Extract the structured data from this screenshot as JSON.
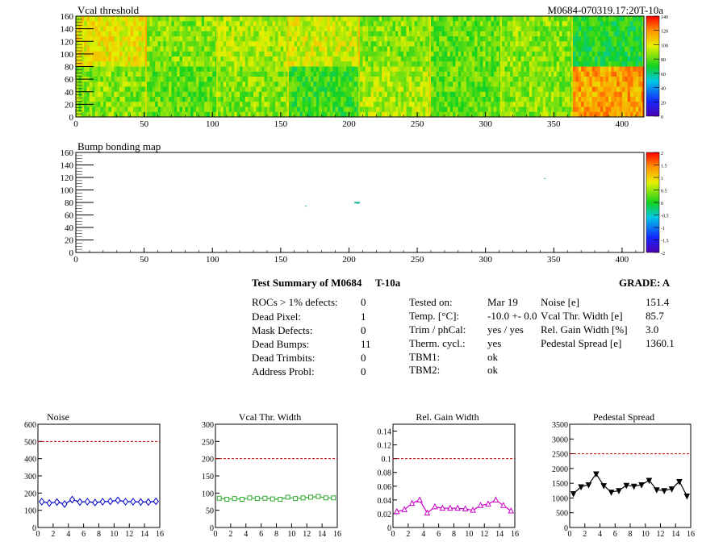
{
  "header": {
    "vcal_title": "Vcal threshold",
    "run_id": "M0684-070319.17:20T-10a",
    "bump_title": "Bump bonding map"
  },
  "heatmaps": {
    "x_ticks": [
      "0",
      "50",
      "100",
      "150",
      "200",
      "250",
      "300",
      "350",
      "400"
    ],
    "y_ticks": [
      "0",
      "20",
      "40",
      "60",
      "80",
      "100",
      "120",
      "140",
      "160"
    ],
    "vcal_palette_ticks": [
      "0",
      "20",
      "40",
      "60",
      "80",
      "100",
      "120",
      "140"
    ],
    "bump_palette_ticks": [
      "-2",
      "-1.5",
      "-1",
      "-0.5",
      "0",
      "0.5",
      "1",
      "1.5",
      "2"
    ]
  },
  "summary": {
    "title": "Test Summary of M0684",
    "condition": "T-10a",
    "grade": "GRADE:  A",
    "left_rows": [
      {
        "label": "ROCs > 1% defects:",
        "value": "0"
      },
      {
        "label": "Dead Pixel:",
        "value": "1"
      },
      {
        "label": "Mask Defects:",
        "value": "0"
      },
      {
        "label": "Dead Bumps:",
        "value": "11"
      },
      {
        "label": "Dead Trimbits:",
        "value": "0"
      },
      {
        "label": "Address Probl:",
        "value": "0"
      }
    ],
    "middle_rows": [
      {
        "label": "Tested on:",
        "value": "Mar 19"
      },
      {
        "label": "Temp. [°C]:",
        "value": "-10.0 +- 0.0"
      },
      {
        "label": "Trim / phCal:",
        "value": "yes / yes"
      },
      {
        "label": "Therm. cycl.:",
        "value": "yes"
      },
      {
        "label": "TBM1:",
        "value": "ok"
      },
      {
        "label": "TBM2:",
        "value": "ok"
      }
    ],
    "right_rows": [
      {
        "label": "Noise [e]",
        "value": "151.4"
      },
      {
        "label": "Vcal Thr. Width [e]",
        "value": "85.7"
      },
      {
        "label": "Rel. Gain Width [%]",
        "value": "3.0"
      },
      {
        "label": "Pedestal Spread [e]",
        "value": "1360.1"
      }
    ]
  },
  "chart_data": [
    {
      "type": "heatmap",
      "title": "Vcal threshold",
      "xlim": [
        0,
        416
      ],
      "ylim": [
        0,
        160
      ],
      "zlim": [
        0,
        140
      ],
      "roc_grid": {
        "columns": 8,
        "rows": 2
      },
      "roc_mean_threshold": [
        [
          100,
          85,
          90,
          95,
          85,
          80,
          85,
          70
        ],
        [
          85,
          80,
          85,
          75,
          90,
          80,
          85,
          115
        ]
      ]
    },
    {
      "type": "heatmap",
      "title": "Bump bonding map",
      "xlim": [
        0,
        416
      ],
      "ylim": [
        0,
        160
      ],
      "zlim": [
        -2,
        2
      ],
      "dead_bumps": [
        {
          "x": 168,
          "y": 74
        },
        {
          "x": 204,
          "y": 80
        },
        {
          "x": 205,
          "y": 80
        },
        {
          "x": 206,
          "y": 80
        },
        {
          "x": 207,
          "y": 80
        },
        {
          "x": 204,
          "y": 79
        },
        {
          "x": 205,
          "y": 79
        },
        {
          "x": 206,
          "y": 79
        },
        {
          "x": 207,
          "y": 79
        },
        {
          "x": 206,
          "y": 78
        },
        {
          "x": 343,
          "y": 118
        }
      ]
    },
    {
      "type": "line",
      "title": "Noise",
      "xlim": [
        0,
        16
      ],
      "ylim": [
        0,
        600
      ],
      "x_ticks": [
        "0",
        "2",
        "4",
        "6",
        "8",
        "10",
        "12",
        "14",
        "16"
      ],
      "y_ticks": [
        "0",
        "100",
        "200",
        "300",
        "400",
        "500",
        "600"
      ],
      "limit": 500,
      "color": "#0000cc",
      "marker": "diamond",
      "values": [
        150,
        142,
        148,
        136,
        162,
        148,
        150,
        145,
        150,
        152,
        158,
        150,
        150,
        148,
        148,
        152
      ]
    },
    {
      "type": "line",
      "title": "Vcal Thr. Width",
      "xlim": [
        0,
        16
      ],
      "ylim": [
        0,
        300
      ],
      "x_ticks": [
        "0",
        "2",
        "4",
        "6",
        "8",
        "10",
        "12",
        "14",
        "16"
      ],
      "y_ticks": [
        "0",
        "50",
        "100",
        "150",
        "200",
        "250",
        "300"
      ],
      "limit": 200,
      "color": "#33aa33",
      "marker": "square",
      "values": [
        85,
        82,
        84,
        82,
        86,
        84,
        85,
        83,
        82,
        88,
        84,
        86,
        88,
        90,
        86,
        86
      ]
    },
    {
      "type": "line",
      "title": "Rel. Gain Width",
      "xlim": [
        0,
        16
      ],
      "ylim": [
        0,
        0.15
      ],
      "x_ticks": [
        "0",
        "2",
        "4",
        "6",
        "8",
        "10",
        "12",
        "14",
        "16"
      ],
      "y_ticks": [
        "0",
        "0.02",
        "0.04",
        "0.06",
        "0.08",
        "0.1",
        "0.12",
        "0.14"
      ],
      "limit": 0.1,
      "color": "#cc00cc",
      "marker": "triangle",
      "values": [
        0.023,
        0.026,
        0.035,
        0.04,
        0.021,
        0.03,
        0.028,
        0.028,
        0.028,
        0.027,
        0.025,
        0.032,
        0.034,
        0.04,
        0.032,
        0.024
      ]
    },
    {
      "type": "line",
      "title": "Pedestal Spread",
      "xlim": [
        0,
        16
      ],
      "ylim": [
        0,
        3500
      ],
      "x_ticks": [
        "0",
        "2",
        "4",
        "6",
        "8",
        "10",
        "12",
        "14",
        "16"
      ],
      "y_ticks": [
        "0",
        "500",
        "1000",
        "1500",
        "2000",
        "2500",
        "3000",
        "3500"
      ],
      "limit": 2500,
      "color": "#000000",
      "marker": "triangle-down",
      "values": [
        1150,
        1380,
        1450,
        1820,
        1420,
        1200,
        1250,
        1430,
        1400,
        1450,
        1600,
        1280,
        1250,
        1310,
        1560,
        1070
      ]
    }
  ]
}
